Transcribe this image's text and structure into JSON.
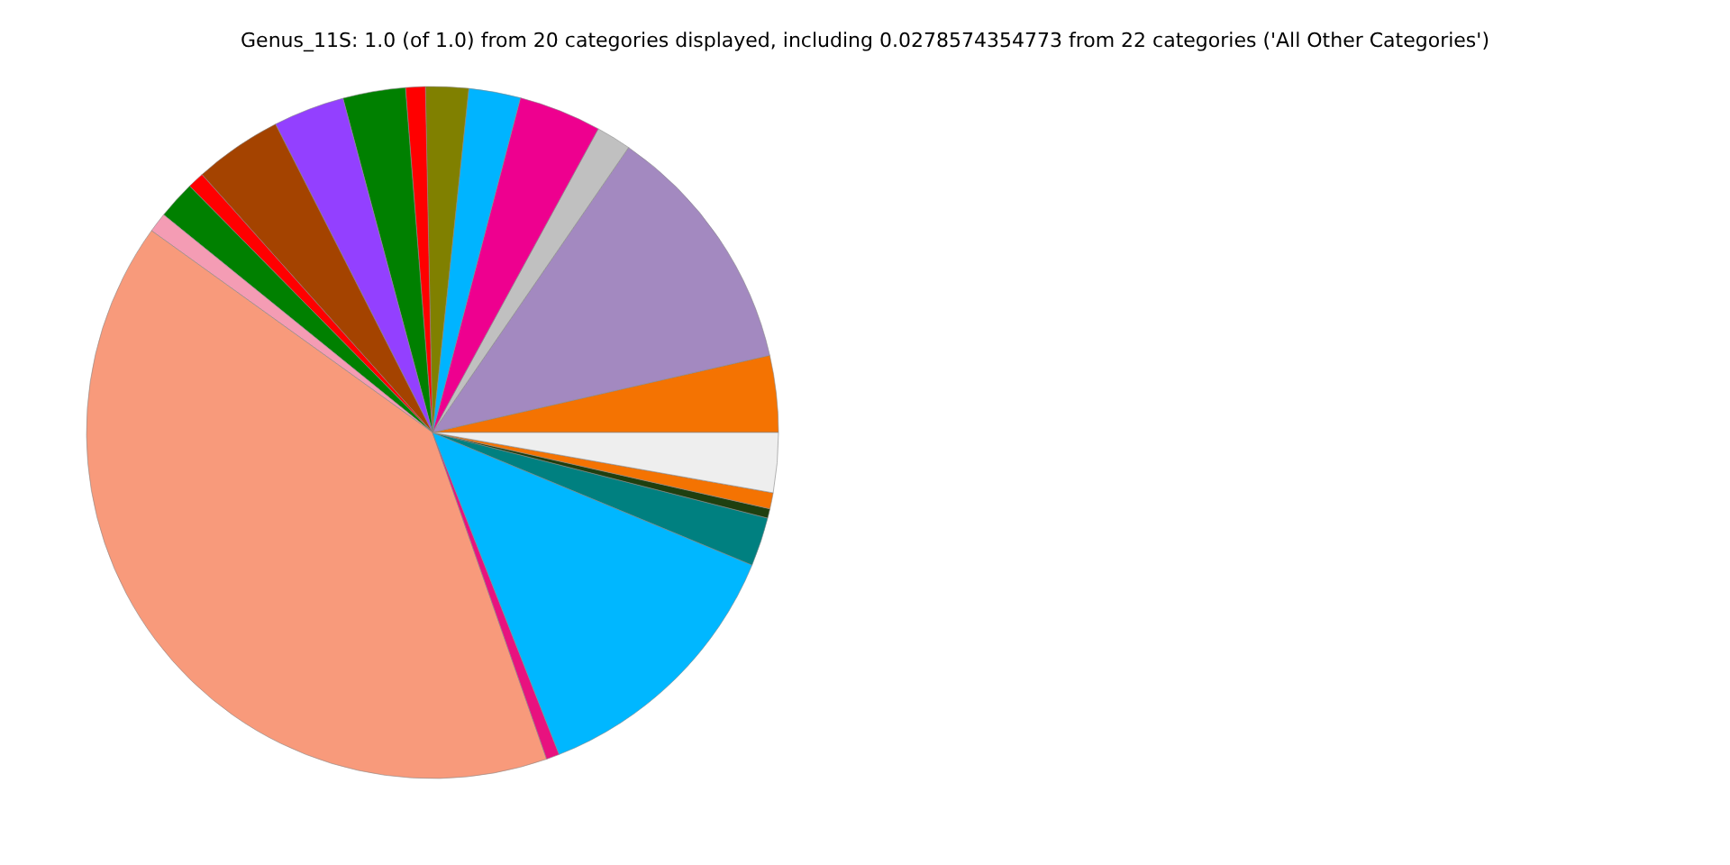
{
  "chart_data": {
    "type": "pie",
    "title": "Genus_11S: 1.0 (of 1.0) from 20 categories displayed, including 0.0278574354773 from 22 categories ('All Other Categories')",
    "categories": [
      null,
      null,
      null,
      null,
      null,
      null,
      null,
      null,
      null,
      null,
      null,
      null,
      null,
      null,
      null,
      null,
      null,
      null,
      null,
      null
    ],
    "values": [
      3.58,
      11.83,
      1.64,
      3.86,
      2.42,
      2.0,
      0.92,
      2.92,
      3.33,
      4.11,
      0.78,
      1.78,
      0.92,
      40.27,
      0.61,
      12.78,
      2.28,
      0.44,
      0.75,
      2.79
    ],
    "colors": [
      "#f47302",
      "#a389c0",
      "#c0c0c0",
      "#ee008f",
      "#00b4ff",
      "#808000",
      "#ff0000",
      "#008000",
      "#9340ff",
      "#a44300",
      "#ff0000",
      "#008000",
      "#f49cb4",
      "#f89a7b",
      "#e8127f",
      "#00b7ff",
      "#008080",
      "#1f3f0f",
      "#f47302",
      "#eeeeee"
    ]
  }
}
